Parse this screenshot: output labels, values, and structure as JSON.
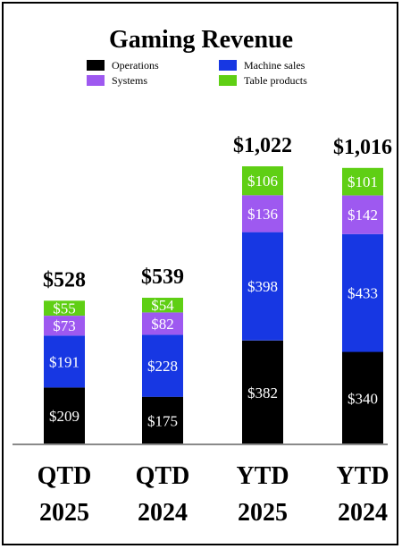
{
  "chart_data": {
    "type": "bar",
    "stacked": true,
    "title": "Gaming Revenue",
    "categories": [
      [
        "QTD",
        "2025"
      ],
      [
        "QTD",
        "2024"
      ],
      [
        "YTD",
        "2025"
      ],
      [
        "YTD",
        "2024"
      ]
    ],
    "totals": [
      "$528",
      "$539",
      "$1,022",
      "$1,016"
    ],
    "series": [
      {
        "name": "Operations",
        "color": "#000000",
        "values": [
          209,
          175,
          382,
          340
        ],
        "labels": [
          "$209",
          "$175",
          "$382",
          "$340"
        ]
      },
      {
        "name": "Machine sales",
        "color": "#1737e3",
        "values": [
          191,
          228,
          398,
          433
        ],
        "labels": [
          "$191",
          "$228",
          "$398",
          "$433"
        ]
      },
      {
        "name": "Systems",
        "color": "#9e59f0",
        "values": [
          73,
          82,
          136,
          142
        ],
        "labels": [
          "$73",
          "$82",
          "$136",
          "$142"
        ]
      },
      {
        "name": "Table products",
        "color": "#5fcf14",
        "values": [
          55,
          54,
          106,
          101
        ],
        "labels": [
          "$55",
          "$54",
          "$106",
          "$101"
        ]
      }
    ],
    "legend_order": [
      "Operations",
      "Machine sales",
      "Systems",
      "Table products"
    ],
    "legend_position": "top",
    "grid": false,
    "ylim": [
      0,
      1022
    ]
  }
}
